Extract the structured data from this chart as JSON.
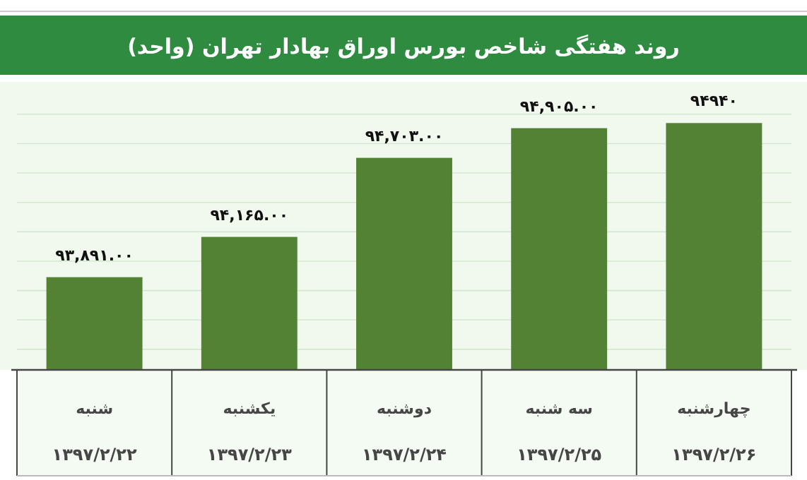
{
  "chart_data": {
    "type": "bar",
    "title": "روند هفتگی شاخص بورس اوراق بهادار تهران (واحد)",
    "categories": [
      "شنبه",
      "یکشنبه",
      "دوشنبه",
      "سه شنبه",
      "چهارشنبه"
    ],
    "annotations": [
      "۱۳۹۷/۲/۲۲",
      "۱۳۹۷/۲/۲۳",
      "۱۳۹۷/۲/۲۴",
      "۱۳۹۷/۲/۲۵",
      "۱۳۹۷/۲/۲۶"
    ],
    "values": [
      93891.0,
      94165.0,
      94703.0,
      94905.0,
      94940
    ],
    "value_labels": [
      "۹۳,۸۹۱.۰۰",
      "۹۴,۱۶۵.۰۰",
      "۹۴,۷۰۳.۰۰",
      "۹۴,۹۰۵.۰۰",
      "۹۴۹۴۰"
    ],
    "color": "#548235",
    "ylim": [
      93260,
      95220
    ],
    "yticks": [
      {
        "value": 93400,
        "label": null
      },
      {
        "value": 93600,
        "label": null
      },
      {
        "value": 93800,
        "label": null
      },
      {
        "value": 94000,
        "label": null
      },
      {
        "value": 94200,
        "label": null
      },
      {
        "value": 94400,
        "label": null
      },
      {
        "value": 94600,
        "label": null
      },
      {
        "value": 94800,
        "label": null
      },
      {
        "value": 95000,
        "label": null
      }
    ],
    "grid": "y"
  }
}
